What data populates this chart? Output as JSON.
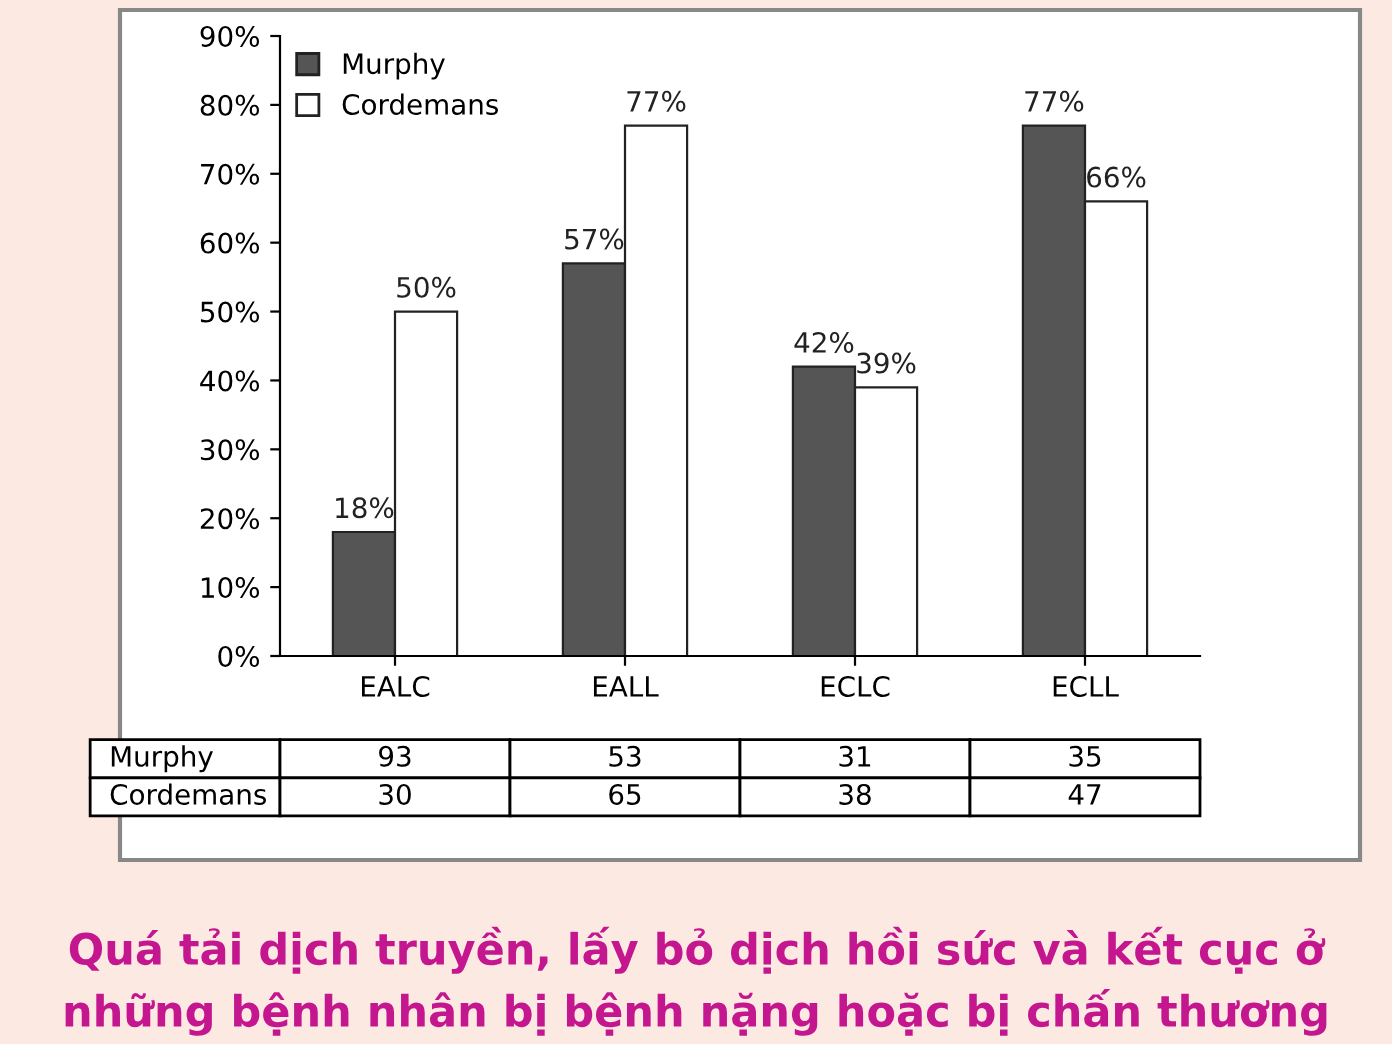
{
  "chart_data": {
    "type": "bar",
    "title": "Quá tải dịch truyền, lấy bỏ dịch hồi sức và kết cục ở\nnhững bệnh nhân bị bệnh nặng hoặc bị chấn thương",
    "categories": [
      "EALC",
      "EALL",
      "ECLC",
      "ECLL"
    ],
    "series": [
      {
        "name": "Murphy",
        "color": "#555555",
        "values": [
          18,
          57,
          42,
          77
        ],
        "value_labels": [
          "18%",
          "57%",
          "42%",
          "77%"
        ]
      },
      {
        "name": "Cordemans",
        "color": "#ffffff",
        "values": [
          50,
          77,
          39,
          66
        ],
        "value_labels": [
          "50%",
          "77%",
          "39%",
          "66%"
        ]
      }
    ],
    "ylim": [
      0,
      90
    ],
    "yticks": [
      {
        "value": 0,
        "label": "0%"
      },
      {
        "value": 10,
        "label": "10%"
      },
      {
        "value": 20,
        "label": "20%"
      },
      {
        "value": 30,
        "label": "30%"
      },
      {
        "value": 40,
        "label": "40%"
      },
      {
        "value": 50,
        "label": "50%"
      },
      {
        "value": 60,
        "label": "60%"
      },
      {
        "value": 70,
        "label": "70%"
      },
      {
        "value": 80,
        "label": "80%"
      },
      {
        "value": 90,
        "label": "90%"
      }
    ],
    "legend": "top left",
    "grid": false,
    "annotations": [
      "93",
      "53",
      "31",
      "35",
      "30",
      "65",
      "38",
      "47"
    ]
  }
}
